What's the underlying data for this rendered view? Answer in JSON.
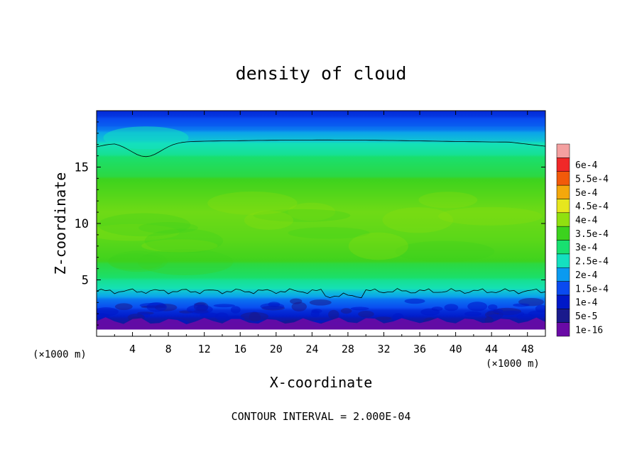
{
  "chart_data": {
    "type": "heatmap",
    "title": "density of cloud",
    "xlabel": "X-coordinate",
    "ylabel": "Z-coordinate",
    "x_unit": "(×1000 m)",
    "z_unit": "(×1000 m)",
    "xlim": [
      0,
      50
    ],
    "zlim": [
      0,
      20
    ],
    "x_ticks": [
      "4",
      "8",
      "12",
      "16",
      "20",
      "24",
      "28",
      "32",
      "36",
      "40",
      "44",
      "48"
    ],
    "z_ticks": [
      "5",
      "10",
      "15"
    ],
    "footer": "CONTOUR INTERVAL = 2.000E-04",
    "colorbar": {
      "labels": [
        "1e-16",
        "5e-5",
        "1e-4",
        "1.5e-4",
        "2e-4",
        "2.5e-4",
        "3e-4",
        "3.5e-4",
        "4e-4",
        "4.5e-4",
        "5e-4",
        "5.5e-4",
        "6e-4"
      ],
      "colors": [
        "#6a0aa6",
        "#1a1a8c",
        "#0018c8",
        "#0a4af0",
        "#0a9af0",
        "#14e0c0",
        "#18e070",
        "#3cd21e",
        "#90e010",
        "#e6e61e",
        "#f4a80c",
        "#f25a0a",
        "#f02828",
        "#f4a0a0"
      ]
    },
    "grid": false,
    "legend_position": "right",
    "approx_profile_vs_height": [
      {
        "z": 0.6,
        "density": 0
      },
      {
        "z": 1.2,
        "density": 3e-05
      },
      {
        "z": 1.8,
        "density": 6e-05
      },
      {
        "z": 2.5,
        "density": 0.0001
      },
      {
        "z": 3.4,
        "density": 0.00015
      },
      {
        "z": 4.0,
        "density": 0.0002
      },
      {
        "z": 5.0,
        "density": 0.00025
      },
      {
        "z": 6.5,
        "density": 0.0003
      },
      {
        "z": 8.5,
        "density": 0.00033
      },
      {
        "z": 11.0,
        "density": 0.00035
      },
      {
        "z": 14.0,
        "density": 0.0003
      },
      {
        "z": 16.0,
        "density": 0.00025
      },
      {
        "z": 17.3,
        "density": 0.0002
      },
      {
        "z": 18.3,
        "density": 0.00015
      },
      {
        "z": 19.3,
        "density": 0.0001
      },
      {
        "z": 20.0,
        "density": 5e-05
      }
    ],
    "contour_lines": [
      {
        "level": 0.0002,
        "z_bottom_approx": 4.0,
        "z_top_approx": 17.3
      }
    ]
  }
}
